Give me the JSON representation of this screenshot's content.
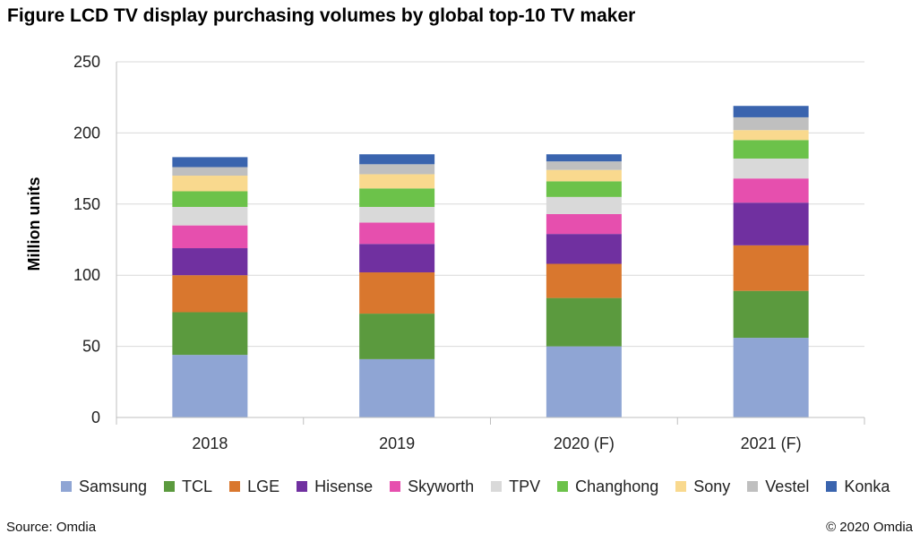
{
  "title": "Figure LCD TV display purchasing volumes by global top-10 TV maker",
  "source": "Source: Omdia",
  "copyright": "© 2020 Omdia",
  "chart_data": {
    "type": "bar",
    "stacked": true,
    "categories": [
      "2018",
      "2019",
      "2020 (F)",
      "2021 (F)"
    ],
    "ylabel": "Million units",
    "xlabel": "",
    "ylim": [
      0,
      250
    ],
    "yticks": [
      0,
      50,
      100,
      150,
      200,
      250
    ],
    "grid": true,
    "legend_position": "bottom",
    "series": [
      {
        "name": "Samsung",
        "color": "#8FA5D4",
        "values": [
          44,
          41,
          50,
          56
        ]
      },
      {
        "name": "TCL",
        "color": "#5B9A3E",
        "values": [
          30,
          32,
          34,
          33
        ]
      },
      {
        "name": "LGE",
        "color": "#D9772E",
        "values": [
          26,
          29,
          24,
          32
        ]
      },
      {
        "name": "Hisense",
        "color": "#7030A0",
        "values": [
          19,
          20,
          21,
          30
        ]
      },
      {
        "name": "Skyworth",
        "color": "#E64FAE",
        "values": [
          16,
          15,
          14,
          17
        ]
      },
      {
        "name": "TPV",
        "color": "#D9D9D9",
        "values": [
          13,
          11,
          12,
          14
        ]
      },
      {
        "name": "Changhong",
        "color": "#6CC24A",
        "values": [
          11,
          13,
          11,
          13
        ]
      },
      {
        "name": "Sony",
        "color": "#F9D98E",
        "values": [
          11,
          10,
          8,
          7
        ]
      },
      {
        "name": "Vestel",
        "color": "#BFBFBF",
        "values": [
          6,
          7,
          6,
          9
        ]
      },
      {
        "name": "Konka",
        "color": "#3A64AE",
        "values": [
          7,
          7,
          5,
          8
        ]
      }
    ]
  }
}
